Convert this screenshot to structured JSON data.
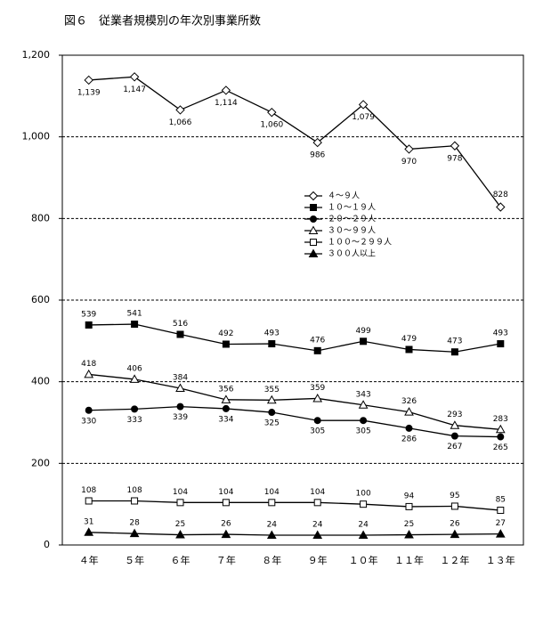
{
  "chart_data": {
    "type": "line",
    "title": "図６　従業者規模別の年次別事業所数",
    "categories": [
      "４年",
      "５年",
      "６年",
      "７年",
      "８年",
      "９年",
      "１０年",
      "１１年",
      "１２年",
      "１３年"
    ],
    "ylim": [
      0,
      1200
    ],
    "yticks": [
      0,
      200,
      400,
      600,
      800,
      {
        "value": 1000,
        "label": "1,000"
      },
      {
        "value": 1200,
        "label": "1,200"
      }
    ],
    "grid": true,
    "series": [
      {
        "name": "４～９人",
        "color": "#000000",
        "marker": "diamond-open",
        "values": [
          1139,
          1147,
          1066,
          1114,
          1060,
          986,
          1079,
          970,
          978,
          828
        ],
        "value_labels": [
          "1,139",
          "1,147",
          "1,066",
          "1,114",
          "1,060",
          "986",
          "1,079",
          "970",
          "978",
          "828"
        ]
      },
      {
        "name": "１０～１９人",
        "color": "#000000",
        "marker": "square-filled",
        "values": [
          539,
          541,
          516,
          492,
          493,
          476,
          499,
          479,
          473,
          493
        ]
      },
      {
        "name": "２０～２９人",
        "color": "#000000",
        "marker": "circle-filled",
        "values": [
          330,
          333,
          339,
          334,
          325,
          305,
          305,
          286,
          267,
          265
        ]
      },
      {
        "name": "３０～９９人",
        "color": "#000000",
        "marker": "triangle-open",
        "values": [
          418,
          406,
          384,
          356,
          355,
          359,
          343,
          326,
          293,
          283
        ]
      },
      {
        "name": "１００～２９９人",
        "color": "#000000",
        "marker": "square-open",
        "values": [
          108,
          108,
          104,
          104,
          104,
          104,
          100,
          94,
          95,
          85
        ]
      },
      {
        "name": "３００人以上",
        "color": "#000000",
        "marker": "triangle-filled",
        "values": [
          31,
          28,
          25,
          26,
          24,
          24,
          24,
          25,
          26,
          27
        ]
      }
    ]
  }
}
